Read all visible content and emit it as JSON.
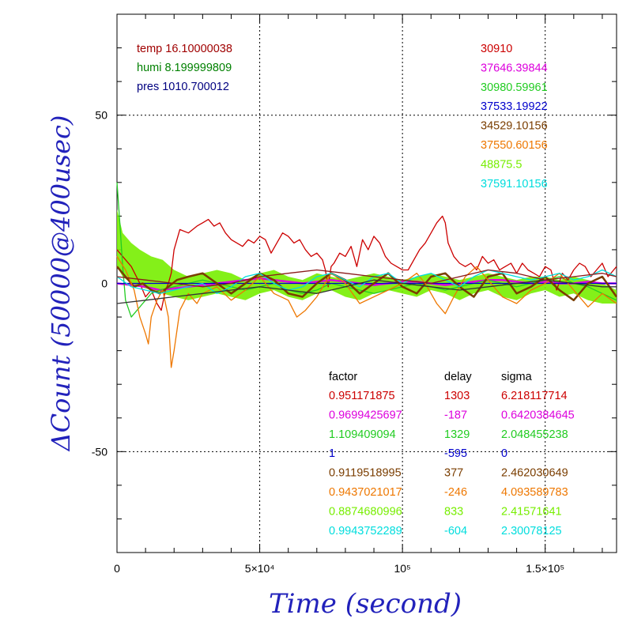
{
  "chart_data": {
    "type": "line",
    "xlabel": "Time (second)",
    "ylabel": "ΔCount (50000@400usec)",
    "xlim": [
      0,
      175000
    ],
    "ylim": [
      -80,
      80
    ],
    "grid": true,
    "x_ticks": [
      {
        "value": 0,
        "label": "0"
      },
      {
        "value": 50000,
        "label": "5×10⁴"
      },
      {
        "value": 100000,
        "label": "10⁵"
      },
      {
        "value": 150000,
        "label": "1.5×10⁵"
      }
    ],
    "y_ticks": [
      {
        "value": 50,
        "label": "50"
      },
      {
        "value": 0,
        "label": "0"
      },
      {
        "value": -50,
        "label": "-50"
      }
    ],
    "environment": [
      {
        "label": "temp 16.10000038",
        "color": "#a00000"
      },
      {
        "label": "humi 8.199999809",
        "color": "#008000"
      },
      {
        "label": "pres 1010.700012",
        "color": "#000080"
      }
    ],
    "counts": [
      {
        "label": "30910",
        "color": "#cc0000"
      },
      {
        "label": "37646.39844",
        "color": "#dd00dd"
      },
      {
        "label": "30980.59961",
        "color": "#22cc22"
      },
      {
        "label": "37533.19922",
        "color": "#0000cc"
      },
      {
        "label": "34529.10156",
        "color": "#7a3d00"
      },
      {
        "label": "37550.60156",
        "color": "#ee7700"
      },
      {
        "label": "48875.5",
        "color": "#77ee00"
      },
      {
        "label": "37591.10156",
        "color": "#00dddd"
      }
    ],
    "table_headers": [
      "factor",
      "delay",
      "sigma"
    ],
    "table_rows": [
      {
        "factor": "0.951171875",
        "delay": "1303",
        "sigma": "6.218117714",
        "color": "#cc0000"
      },
      {
        "factor": "0.9699425697",
        "delay": "-187",
        "sigma": "0.6420384645",
        "color": "#dd00dd"
      },
      {
        "factor": "1.109409094",
        "delay": "1329",
        "sigma": "2.048455238",
        "color": "#22cc22"
      },
      {
        "factor": "1",
        "delay": "-595",
        "sigma": "0",
        "color": "#0000cc"
      },
      {
        "factor": "0.9119518995",
        "delay": "377",
        "sigma": "2.462030649",
        "color": "#7a3d00"
      },
      {
        "factor": "0.9437021017",
        "delay": "-246",
        "sigma": "4.093589783",
        "color": "#ee7700"
      },
      {
        "factor": "0.8874680996",
        "delay": "833",
        "sigma": "2.41571641",
        "color": "#77ee00"
      },
      {
        "factor": "0.9943752289",
        "delay": "-604",
        "sigma": "2.30078125",
        "color": "#00dddd"
      }
    ],
    "series": [
      {
        "color": "#cc0000",
        "x": [
          0,
          2000,
          5000,
          8000,
          10000,
          12000,
          14000,
          15500,
          17000,
          18000,
          19000,
          20000,
          22000,
          25000,
          28000,
          30000,
          32000,
          34000,
          36000,
          38000,
          40000,
          42000,
          44000,
          46000,
          48000,
          50000,
          52000,
          54000,
          56000,
          58000,
          60000,
          62000,
          64000,
          66000,
          68000,
          70000,
          72000,
          73000,
          74000,
          75000,
          76000,
          78000,
          80000,
          82000,
          84000,
          86000,
          88000,
          90000,
          92000,
          94000,
          96000,
          98000,
          100000,
          102000,
          104000,
          106000,
          108000,
          110000,
          112000,
          114000,
          115000,
          116000,
          118000,
          120000,
          122000,
          124000,
          126000,
          128000,
          130000,
          132000,
          134000,
          136000,
          138000,
          140000,
          142000,
          144000,
          146000,
          148000,
          150000,
          152000,
          154000,
          156000,
          158000,
          160000,
          162000,
          164000,
          166000,
          168000,
          170000,
          172000,
          175000
        ],
        "y": [
          10,
          8,
          5,
          0,
          -4,
          -2,
          -6,
          -8,
          -2,
          0,
          3,
          10,
          16,
          15,
          17,
          18,
          19,
          17,
          18,
          15,
          13,
          12,
          11,
          13,
          12,
          14,
          13,
          9,
          12,
          15,
          14,
          12,
          13,
          10,
          8,
          9,
          7,
          4,
          -1,
          5,
          6,
          9,
          8,
          11,
          5,
          13,
          10,
          14,
          12,
          8,
          6,
          5,
          4,
          4,
          7,
          10,
          12,
          15,
          18,
          20,
          18,
          12,
          8,
          6,
          5,
          6,
          4,
          8,
          6,
          7,
          4,
          5,
          6,
          3,
          6,
          4,
          3,
          2,
          5,
          4,
          -2,
          3,
          1,
          4,
          6,
          5,
          2,
          4,
          6,
          2,
          5
        ]
      },
      {
        "color": "#dd00dd",
        "x": [
          0,
          5000,
          10000,
          15000,
          20000,
          25000,
          30000,
          35000,
          40000,
          45000,
          50000,
          55000,
          60000,
          65000,
          70000,
          75000,
          80000,
          85000,
          90000,
          95000,
          100000,
          105000,
          110000,
          115000,
          120000,
          125000,
          130000,
          135000,
          140000,
          145000,
          150000,
          155000,
          160000,
          165000,
          170000,
          175000
        ],
        "y": [
          0,
          -0.5,
          -1,
          -2,
          -1.5,
          -1,
          -0.5,
          0,
          0.5,
          1,
          1.5,
          1,
          0.5,
          0,
          0.5,
          1,
          0.5,
          0,
          -0.5,
          0,
          0.5,
          0.5,
          0,
          -0.5,
          0,
          0.5,
          1,
          1,
          0.5,
          0,
          0.5,
          0,
          0,
          0.5,
          0,
          0
        ]
      },
      {
        "color": "#22cc22",
        "x": [
          0,
          1000,
          2000,
          3000,
          5000,
          7000,
          9000,
          12000,
          15000,
          20000,
          25000,
          30000,
          35000,
          40000,
          45000,
          50000,
          55000,
          60000,
          65000,
          70000,
          75000,
          80000,
          85000,
          90000,
          95000,
          100000,
          105000,
          110000,
          115000,
          120000,
          125000,
          130000,
          135000,
          140000,
          145000,
          150000,
          155000,
          160000,
          165000,
          170000,
          175000
        ],
        "y": [
          30,
          18,
          5,
          -5,
          -10,
          -8,
          -6,
          -3,
          -2,
          -1,
          0,
          1,
          0,
          -1,
          -2,
          -1,
          0,
          -2,
          -3,
          -2,
          0,
          -1,
          -2,
          -3,
          -2,
          -1,
          0,
          -1,
          -2,
          -1,
          0,
          1,
          0,
          -1,
          0,
          1,
          2,
          0,
          -1,
          -3,
          -5
        ]
      },
      {
        "color": "#0000cc",
        "x": [
          0,
          10000,
          20000,
          30000,
          40000,
          50000,
          60000,
          70000,
          80000,
          90000,
          100000,
          110000,
          120000,
          130000,
          140000,
          150000,
          160000,
          170000,
          175000
        ],
        "y": [
          0,
          0,
          0,
          0,
          0,
          0,
          0,
          0,
          0,
          0,
          0,
          0,
          0,
          0,
          0,
          0,
          0,
          0,
          0
        ]
      },
      {
        "color": "#7a3d00",
        "x": [
          0,
          3000,
          6000,
          9000,
          12000,
          15000,
          18000,
          21000,
          25000,
          30000,
          35000,
          40000,
          45000,
          50000,
          55000,
          60000,
          65000,
          70000,
          75000,
          80000,
          85000,
          90000,
          95000,
          100000,
          105000,
          110000,
          115000,
          120000,
          125000,
          130000,
          135000,
          140000,
          145000,
          150000,
          155000,
          160000,
          165000,
          170000,
          175000
        ],
        "y": [
          5,
          2,
          -1,
          0,
          -2,
          -3,
          -1,
          1,
          2,
          3,
          0,
          -3,
          0,
          3,
          1,
          -3,
          -4,
          0,
          3,
          1,
          -3,
          0,
          3,
          -1,
          -3,
          2,
          3,
          -1,
          -4,
          2,
          3,
          -3,
          -1,
          2,
          -2,
          -5,
          0,
          2,
          -4
        ]
      },
      {
        "color": "#ee7700",
        "x": [
          0,
          3000,
          6000,
          8000,
          10000,
          11000,
          12000,
          14000,
          16000,
          18000,
          19000,
          20000,
          22000,
          25000,
          28000,
          30000,
          35000,
          40000,
          45000,
          50000,
          55000,
          60000,
          63000,
          66000,
          70000,
          75000,
          80000,
          85000,
          90000,
          95000,
          100000,
          105000,
          108000,
          112000,
          115000,
          118000,
          122000,
          126000,
          130000,
          135000,
          140000,
          145000,
          150000,
          155000,
          160000,
          165000,
          170000,
          175000
        ],
        "y": [
          8,
          4,
          -2,
          -10,
          -15,
          -18,
          -10,
          -5,
          -2,
          -10,
          -25,
          -20,
          -8,
          -3,
          -6,
          -3,
          -1,
          -5,
          -2,
          2,
          -3,
          -5,
          -10,
          -8,
          -4,
          3,
          0,
          -6,
          -4,
          -2,
          0,
          3,
          0,
          -6,
          -9,
          -4,
          2,
          5,
          1,
          -4,
          -6,
          -2,
          0,
          3,
          -2,
          -7,
          -3,
          -6
        ]
      },
      {
        "color": "#00dddd",
        "x": [
          0,
          5000,
          10000,
          15000,
          20000,
          25000,
          30000,
          35000,
          40000,
          45000,
          50000,
          55000,
          60000,
          65000,
          70000,
          75000,
          80000,
          85000,
          90000,
          95000,
          100000,
          105000,
          110000,
          115000,
          120000,
          125000,
          130000,
          135000,
          140000,
          145000,
          150000,
          155000,
          160000,
          165000,
          170000,
          175000
        ],
        "y": [
          2,
          -1,
          -2,
          -3,
          -2,
          -1,
          0,
          -3,
          -1,
          2,
          3,
          0,
          -2,
          -1,
          2,
          3,
          1,
          -1,
          2,
          3,
          0,
          2,
          3,
          1,
          -1,
          2,
          4,
          3,
          2,
          1,
          2,
          3,
          1,
          2,
          4,
          2
        ]
      },
      {
        "color": "#333333",
        "x": [
          0,
          10000,
          20000,
          30000,
          40000,
          50000,
          60000,
          70000,
          80000,
          90000,
          100000,
          110000,
          120000,
          130000,
          140000,
          150000,
          160000,
          170000,
          175000
        ],
        "y": [
          -6,
          -5,
          -4,
          -3,
          -2,
          -1,
          -2,
          -3,
          -1,
          1,
          0,
          -1,
          -2,
          -1,
          0,
          1,
          0,
          -1,
          -1
        ]
      },
      {
        "color": "#8b1a1a",
        "x": [
          0,
          10000,
          20000,
          30000,
          40000,
          50000,
          60000,
          70000,
          80000,
          90000,
          100000,
          110000,
          120000,
          130000,
          140000,
          150000,
          160000,
          170000,
          175000
        ],
        "y": [
          2,
          1,
          0,
          -1,
          0,
          2,
          3,
          4,
          3,
          2,
          1,
          0,
          2,
          4,
          3,
          1,
          2,
          3,
          2
        ]
      }
    ],
    "band": {
      "color": "#77ee00",
      "x": [
        0,
        2000,
        5000,
        8000,
        12000,
        16000,
        20000,
        25000,
        30000,
        35000,
        40000,
        45000,
        50000,
        55000,
        60000,
        65000,
        70000,
        75000,
        80000,
        85000,
        90000,
        95000,
        100000,
        105000,
        110000,
        115000,
        120000,
        125000,
        130000,
        135000,
        140000,
        145000,
        150000,
        155000,
        160000,
        165000,
        170000,
        175000
      ],
      "y_upper": [
        22,
        15,
        12,
        10,
        8,
        7,
        4,
        2,
        3,
        4,
        3,
        1,
        3,
        4,
        2,
        1,
        3,
        2,
        1,
        2,
        3,
        2,
        1,
        2,
        3,
        2,
        1,
        2,
        3,
        2,
        1,
        2,
        2,
        1,
        2,
        1,
        0,
        -2
      ],
      "y_lower": [
        5,
        2,
        0,
        -1,
        -2,
        -3,
        -4,
        -5,
        -4,
        -3,
        -4,
        -5,
        -3,
        -2,
        -4,
        -5,
        -3,
        -2,
        -4,
        -5,
        -3,
        -2,
        -3,
        -4,
        -2,
        -3,
        -5,
        -3,
        -2,
        -4,
        -5,
        -3,
        -2,
        -4,
        -3,
        -5,
        -6,
        -6
      ]
    }
  }
}
